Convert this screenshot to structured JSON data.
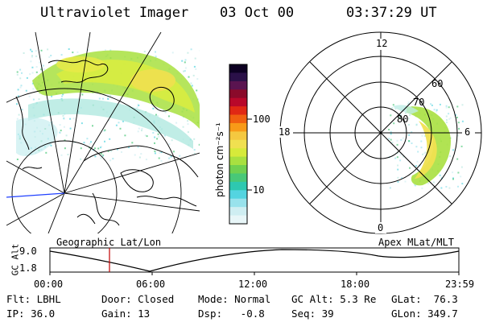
{
  "header": {
    "title": "Ultraviolet Imager",
    "date": "03 Oct 00",
    "time": "03:37:29 UT"
  },
  "colorbar": {
    "unit_label": "photon cm⁻²s⁻¹",
    "tick_labels": [
      "100",
      "10"
    ],
    "colors": [
      "#0d0022",
      "#2a1048",
      "#5a1450",
      "#8a0a2a",
      "#b8082a",
      "#e02814",
      "#f06010",
      "#f89a18",
      "#f4c840",
      "#f0e050",
      "#d6ea3a",
      "#a8e040",
      "#70d050",
      "#48c878",
      "#2ec8b0",
      "#54d4e0",
      "#98e2ec",
      "#cfeef2",
      "#e8f6f8"
    ]
  },
  "left_panel": {
    "caption": "Geographic Lat/Lon"
  },
  "right_panel": {
    "caption": "Apex MLat/MLT",
    "mlt_labels": {
      "top": "12",
      "left": "18",
      "right": "6",
      "bottom": "0"
    },
    "mlat_labels": [
      "60",
      "70",
      "80"
    ]
  },
  "altitude_strip": {
    "axis_label": "GC Alt",
    "y_ticks": [
      "9.0",
      "1.8"
    ],
    "x_ticks": [
      "00:00",
      "06:00",
      "12:00",
      "18:00",
      "23:59"
    ]
  },
  "status": {
    "row1": {
      "flt": "Flt: LBHL",
      "door": "Door: Closed",
      "mode": "Mode: Normal",
      "gc_alt": "GC Alt: 5.3 Re",
      "glat": "GLat:  76.3"
    },
    "row2": {
      "ip": "IP: 36.0",
      "gain": "Gain: 13",
      "dsp": "Dsp:   -0.8",
      "seq": "Seq: 39",
      "glon": "GLon: 349.7"
    }
  }
}
